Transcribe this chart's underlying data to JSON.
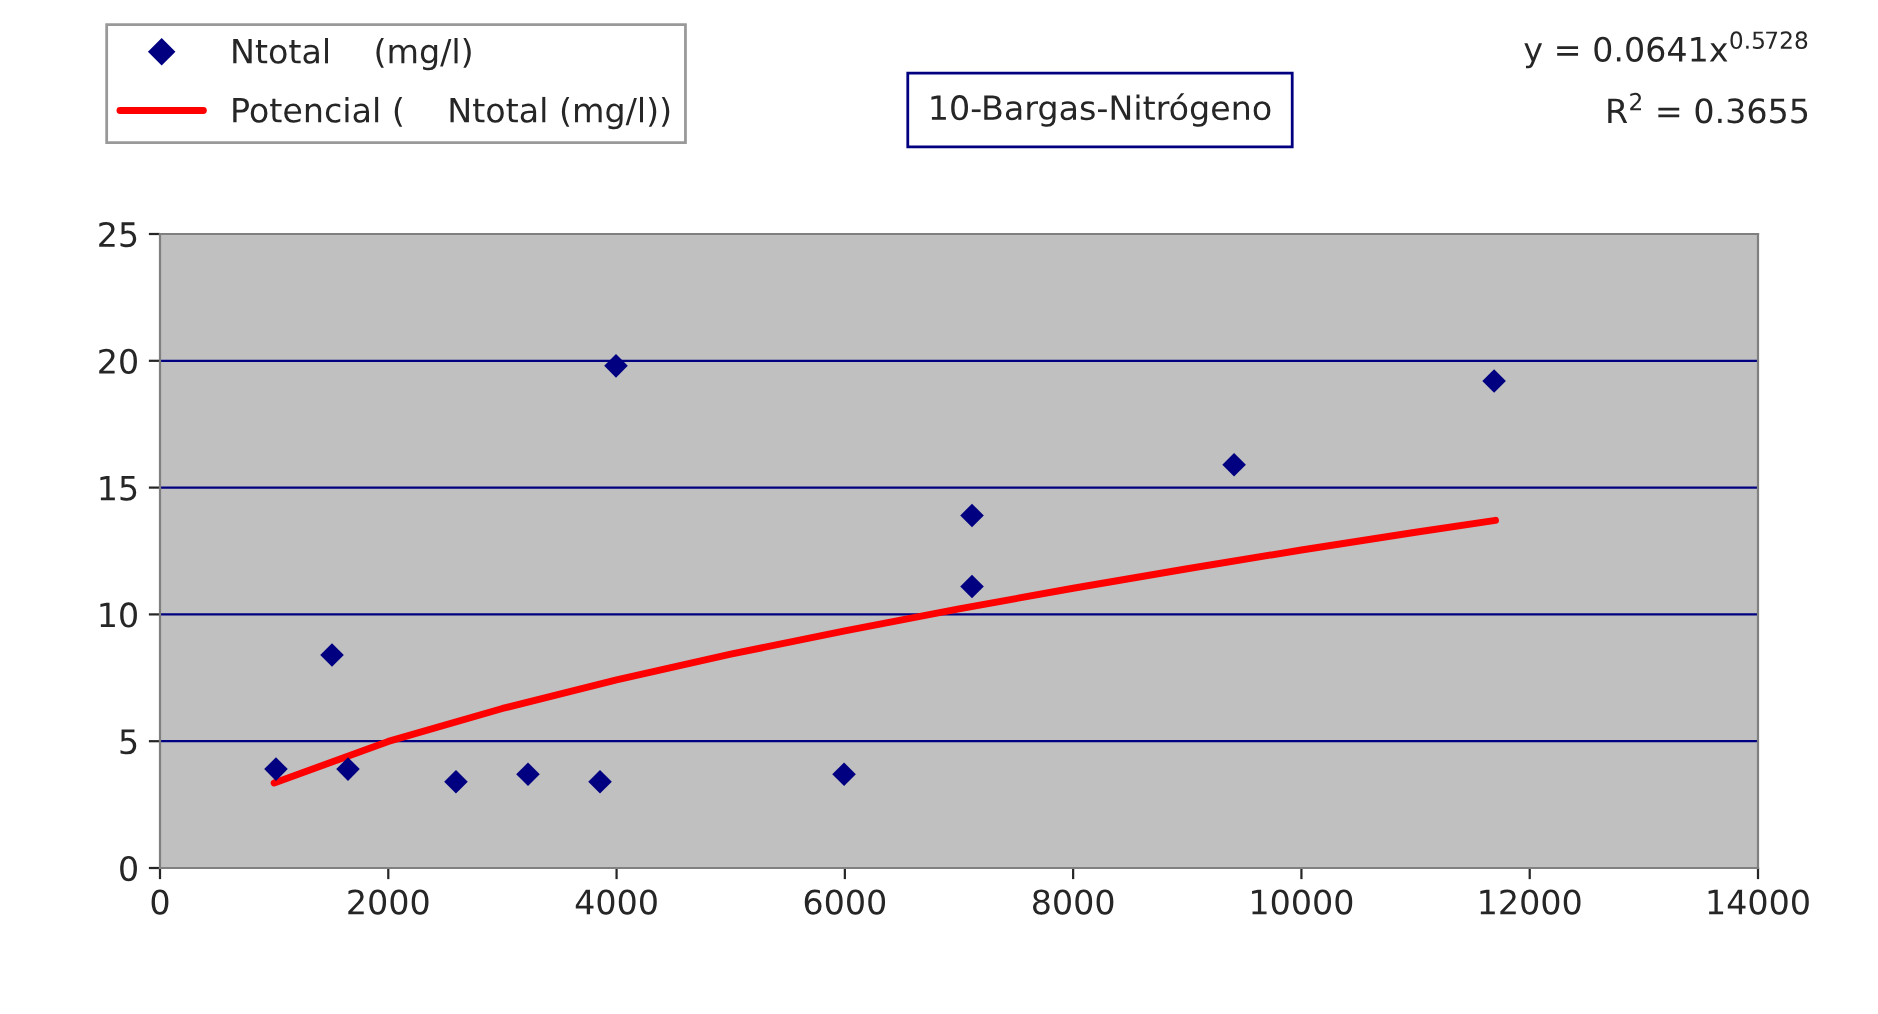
{
  "chart_data": {
    "type": "scatter",
    "title": "10-Bargas-Nitrógeno",
    "series": [
      {
        "name": "Ntotal    (mg/l)",
        "marker": "diamond",
        "color": "#000080",
        "x": [
          1016,
          1507,
          1647,
          2593,
          3224,
          3855,
          3995,
          5993,
          7114,
          7114,
          9410,
          11688
        ],
        "values": [
          3.9,
          8.4,
          3.9,
          3.4,
          3.7,
          3.4,
          19.8,
          3.7,
          13.9,
          11.1,
          15.9,
          19.2
        ]
      },
      {
        "name": "Potencial (    Ntotal (mg/l))",
        "type": "line",
        "line_style": "solid",
        "color": "#ff0000",
        "x": [
          1000,
          2000,
          3000,
          4000,
          5000,
          6000,
          7000,
          8000,
          9000,
          10000,
          11000,
          11700
        ],
        "values": [
          3.35,
          4.99,
          6.29,
          7.42,
          8.43,
          9.35,
          10.22,
          11.03,
          11.8,
          12.54,
          13.24,
          13.71
        ]
      }
    ],
    "annotations": [
      "y = 0.0641x$^{0.5728}$",
      "R$^{2}$ = 0.3655"
    ],
    "xlim": [
      0,
      14000
    ],
    "xticks": [
      0,
      2000,
      4000,
      6000,
      8000,
      10000,
      12000,
      14000
    ],
    "ylim": [
      0,
      25
    ],
    "yticks": [
      0,
      5,
      10,
      15,
      20,
      25
    ],
    "grid": "y",
    "legend": "top left"
  }
}
